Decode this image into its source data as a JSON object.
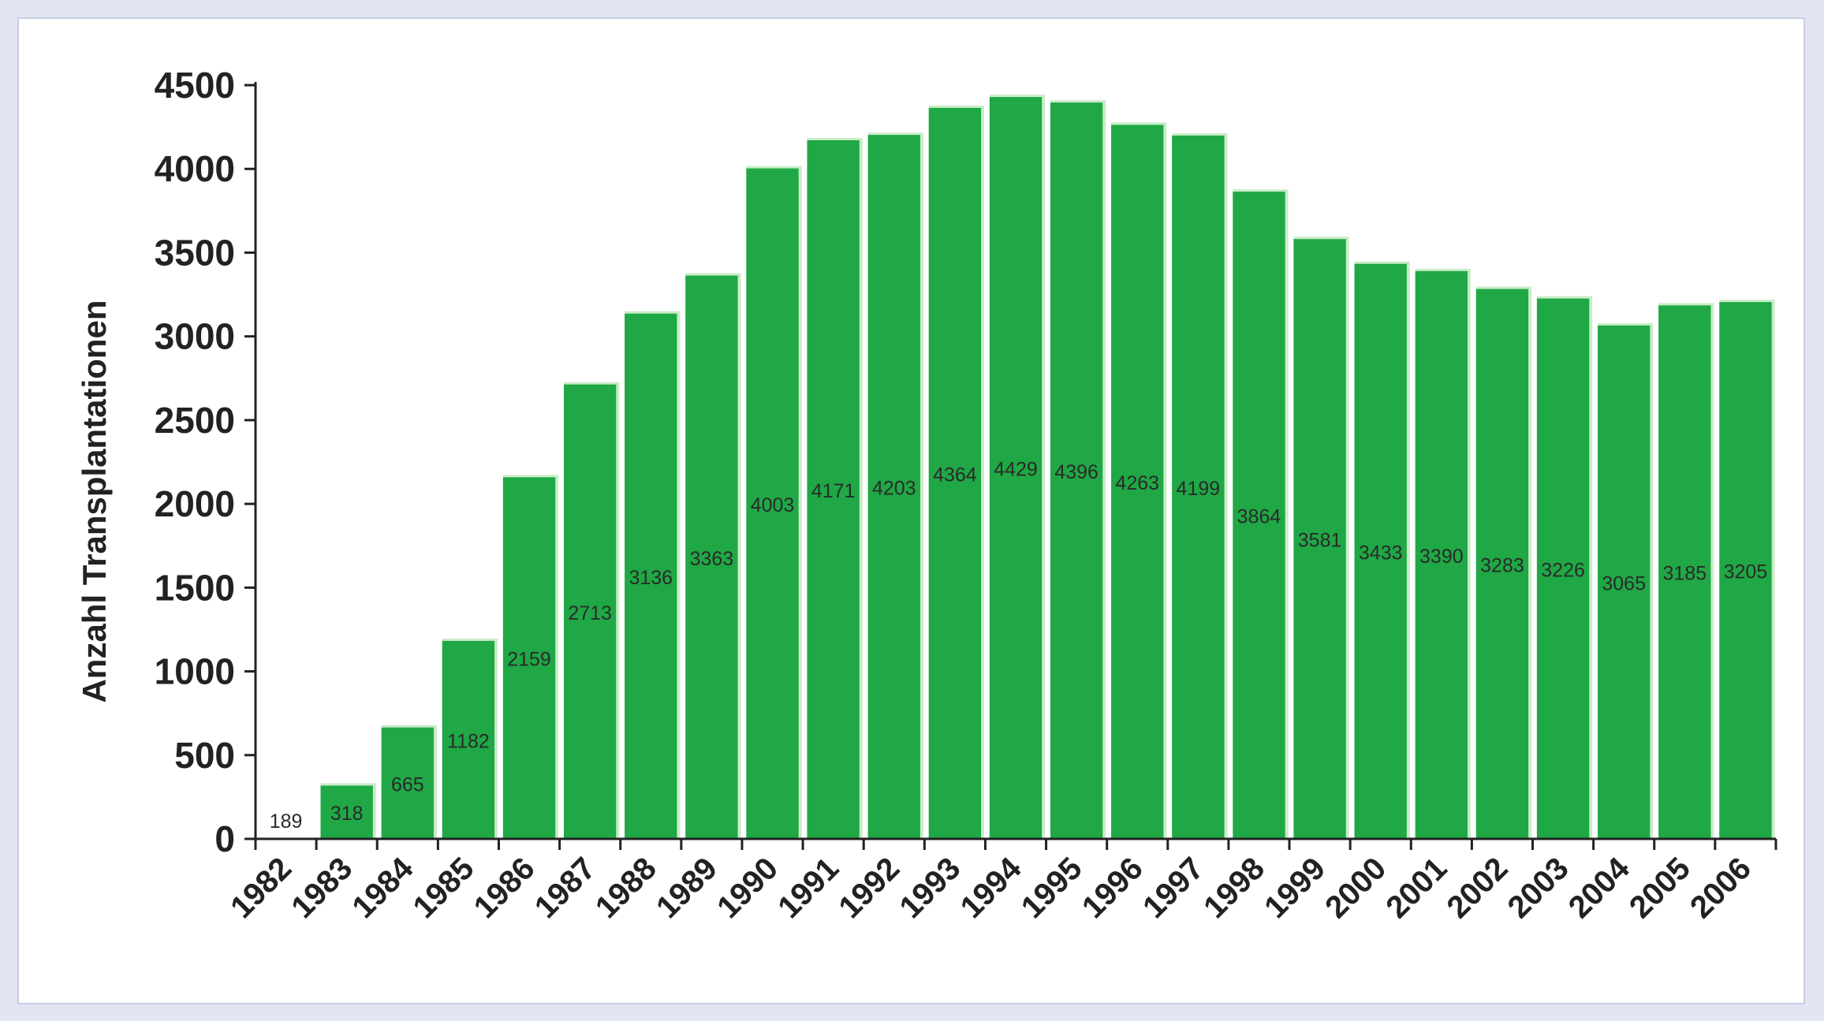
{
  "chart_data": {
    "type": "bar",
    "title": "",
    "xlabel": "",
    "ylabel": "Anzahl Transplantationen",
    "ylim": [
      0,
      4500
    ],
    "yticks": [
      0,
      500,
      1000,
      1500,
      2000,
      2500,
      3000,
      3500,
      4000,
      4500
    ],
    "grid": false,
    "legend": "none",
    "bar_color": "#1fa845",
    "bar_highlight_color": "#c9ecc9",
    "categories": [
      "1982",
      "1983",
      "1984",
      "1985",
      "1986",
      "1987",
      "1988",
      "1989",
      "1990",
      "1991",
      "1992",
      "1993",
      "1994",
      "1995",
      "1996",
      "1997",
      "1998",
      "1999",
      "2000",
      "2001",
      "2002",
      "2003",
      "2004",
      "2005",
      "2006"
    ],
    "values": [
      189,
      318,
      665,
      1182,
      2159,
      2713,
      3136,
      3363,
      4003,
      4171,
      4203,
      4364,
      4429,
      4396,
      4263,
      4199,
      3864,
      3581,
      3433,
      3390,
      3283,
      3226,
      3065,
      3185,
      3205
    ],
    "data_labels": [
      "189",
      "318",
      "665",
      "1182",
      "2159",
      "2713",
      "3136",
      "3363",
      "4003",
      "4171",
      "4203",
      "4364",
      "4429",
      "4396",
      "4263",
      "4199",
      "3864",
      "3581",
      "3433",
      "3390",
      "3283",
      "3226",
      "3065",
      "3185",
      "3205"
    ]
  }
}
